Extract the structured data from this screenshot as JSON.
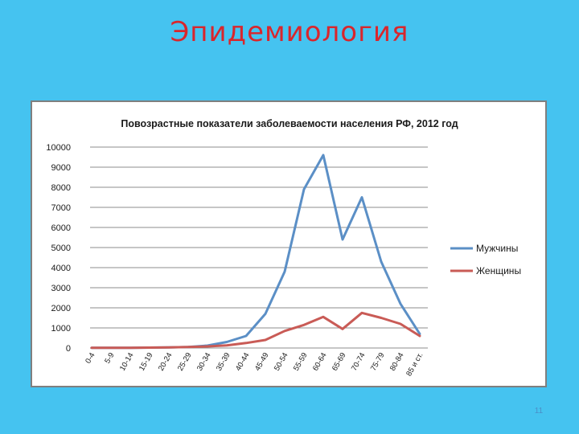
{
  "slide": {
    "title": "Эпидемиология",
    "page_number": "11"
  },
  "colors": {
    "background": "#45c3f0",
    "title": "#d9262c",
    "men": "#5b8fc6",
    "women": "#c95b56"
  },
  "chart_data": {
    "type": "line",
    "title": "Повозрастные показатели заболеваемости населения РФ, 2012 год",
    "xlabel": "",
    "ylabel": "",
    "ylim": [
      0,
      10000
    ],
    "yticks": [
      0,
      1000,
      2000,
      3000,
      4000,
      5000,
      6000,
      7000,
      8000,
      9000,
      10000
    ],
    "grid": true,
    "legend_position": "right",
    "categories": [
      "0-4",
      "5-9",
      "10-14",
      "15-19",
      "20-24",
      "25-29",
      "30-34",
      "35-39",
      "40-44",
      "45-49",
      "50-54",
      "55-59",
      "60-64",
      "65-69",
      "70-74",
      "75-79",
      "80-84",
      "85 и ст."
    ],
    "series": [
      {
        "name": "Мужчины",
        "values": [
          10,
          10,
          10,
          20,
          30,
          50,
          120,
          300,
          600,
          1700,
          3800,
          7900,
          9600,
          5400,
          7500,
          4300,
          2200,
          700
        ]
      },
      {
        "name": "Женщины",
        "values": [
          10,
          10,
          10,
          20,
          30,
          50,
          80,
          130,
          250,
          400,
          850,
          1150,
          1550,
          950,
          1750,
          1500,
          1200,
          600
        ]
      }
    ]
  }
}
